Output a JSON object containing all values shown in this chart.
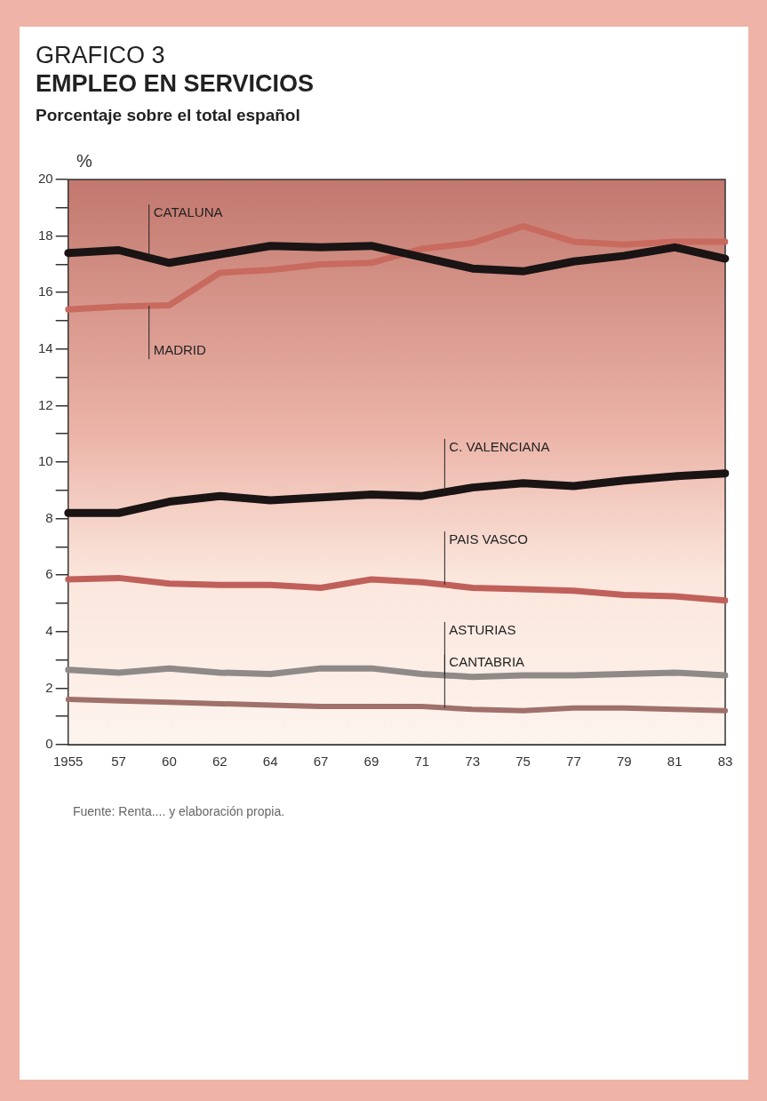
{
  "chart_data": {
    "type": "line",
    "title": "GRAFICO 3",
    "subtitle": "EMPLEO EN SERVICIOS",
    "ylabel": "%",
    "annotations": [
      "Porcentaje sobre el total español",
      "Fuente: Renta.... y elaboración propia."
    ],
    "categories": [
      "1955",
      "57",
      "60",
      "62",
      "64",
      "67",
      "69",
      "71",
      "73",
      "75",
      "77",
      "79",
      "81",
      "83"
    ],
    "series": [
      {
        "name": "CATALUNA",
        "color": "#1a1414",
        "values": [
          17.4,
          17.5,
          17.05,
          17.35,
          17.65,
          17.6,
          17.65,
          17.25,
          16.85,
          16.75,
          17.1,
          17.3,
          17.6,
          17.2
        ]
      },
      {
        "name": "MADRID",
        "color": "#c96a5e",
        "values": [
          15.4,
          15.5,
          15.55,
          16.7,
          16.8,
          17.0,
          17.05,
          17.55,
          17.75,
          18.35,
          17.8,
          17.7,
          17.8,
          17.8
        ]
      },
      {
        "name": "C. VALENCIANA",
        "color": "#1a1414",
        "values": [
          8.2,
          8.2,
          8.6,
          8.8,
          8.65,
          8.75,
          8.85,
          8.8,
          9.1,
          9.25,
          9.15,
          9.35,
          9.5,
          9.6
        ]
      },
      {
        "name": "PAIS VASCO",
        "color": "#c0605a",
        "values": [
          5.85,
          5.9,
          5.7,
          5.65,
          5.65,
          5.55,
          5.85,
          5.75,
          5.55,
          5.5,
          5.45,
          5.3,
          5.25,
          5.1
        ]
      },
      {
        "name": "ASTURIAS",
        "color": "#8f8a88",
        "values": [
          2.65,
          2.55,
          2.7,
          2.55,
          2.5,
          2.7,
          2.7,
          2.5,
          2.4,
          2.45,
          2.45,
          2.5,
          2.55,
          2.45
        ]
      },
      {
        "name": "CANTABRIA",
        "color": "#a0706a",
        "values": [
          1.6,
          1.55,
          1.5,
          1.45,
          1.4,
          1.35,
          1.35,
          1.35,
          1.25,
          1.2,
          1.3,
          1.3,
          1.25,
          1.2
        ]
      }
    ],
    "ylim": [
      0,
      20
    ],
    "yticks": [
      0,
      {
        "value": 1,
        "label": null
      },
      2,
      {
        "value": 3,
        "label": null
      },
      4,
      {
        "value": 5,
        "label": null
      },
      6,
      {
        "value": 7,
        "label": null
      },
      8,
      {
        "value": 9,
        "label": null
      },
      10,
      {
        "value": 11,
        "label": null
      },
      12,
      {
        "value": 13,
        "label": null
      },
      14,
      {
        "value": 15,
        "label": null
      },
      16,
      {
        "value": 17,
        "label": null
      },
      18,
      {
        "value": 19,
        "label": null
      },
      20
    ],
    "grid": false,
    "legend": false,
    "marker": "none",
    "line_style": "solid"
  }
}
